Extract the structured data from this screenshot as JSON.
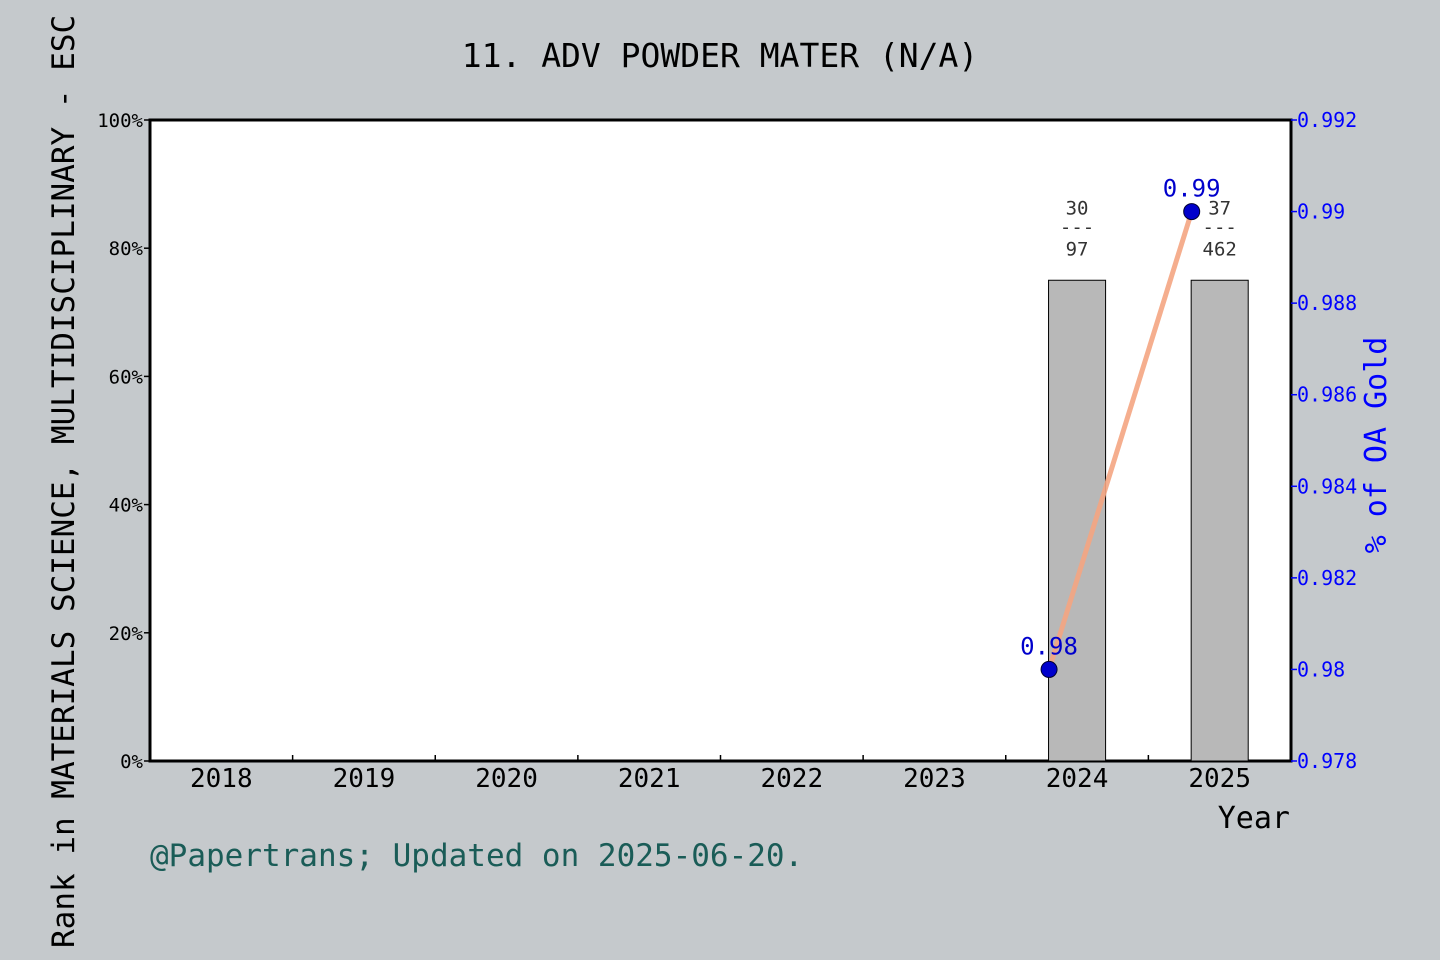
{
  "chart_data": {
    "type": "bar",
    "title": "11. ADV POWDER MATER (N/A)",
    "categories": [
      "2018",
      "2019",
      "2020",
      "2021",
      "2022",
      "2023",
      "2024",
      "2025"
    ],
    "xlabel": "Year",
    "ylabel": "Rank in MATERIALS SCIENCE, MULTIDISCIPLINARY - ESC",
    "ylabel_right": "% of OA Gold",
    "ylim": [
      0,
      100
    ],
    "ylim_right": [
      0.978,
      0.992
    ],
    "yticks": [
      "0%",
      "20%",
      "40%",
      "60%",
      "80%",
      "100%"
    ],
    "yticks_right": [
      "0.978",
      "0.98",
      "0.982",
      "0.984",
      "0.986",
      "0.988",
      "0.99",
      "0.992"
    ],
    "bars": [
      {
        "category": "2024",
        "value": 75,
        "rank": "30",
        "total": "97",
        "divider": "---"
      },
      {
        "category": "2025",
        "value": 75,
        "rank": "37",
        "total": "462",
        "divider": "---"
      }
    ],
    "line_series": {
      "points": [
        {
          "category": "2024",
          "value": 0.98,
          "label": "0.98"
        },
        {
          "category": "2025",
          "value": 0.99,
          "label": "0.99"
        }
      ],
      "line_color": "#f4a582",
      "marker_color": "#0000cc"
    },
    "grid": false,
    "colors": {
      "background": "#c5c9cc",
      "plot_background": "#ffffff",
      "bar_fill": "#b8b8b8",
      "right_axis": "#0000ff",
      "footer": "#1a5c57"
    }
  },
  "footer": "@Papertrans; Updated on 2025-06-20."
}
